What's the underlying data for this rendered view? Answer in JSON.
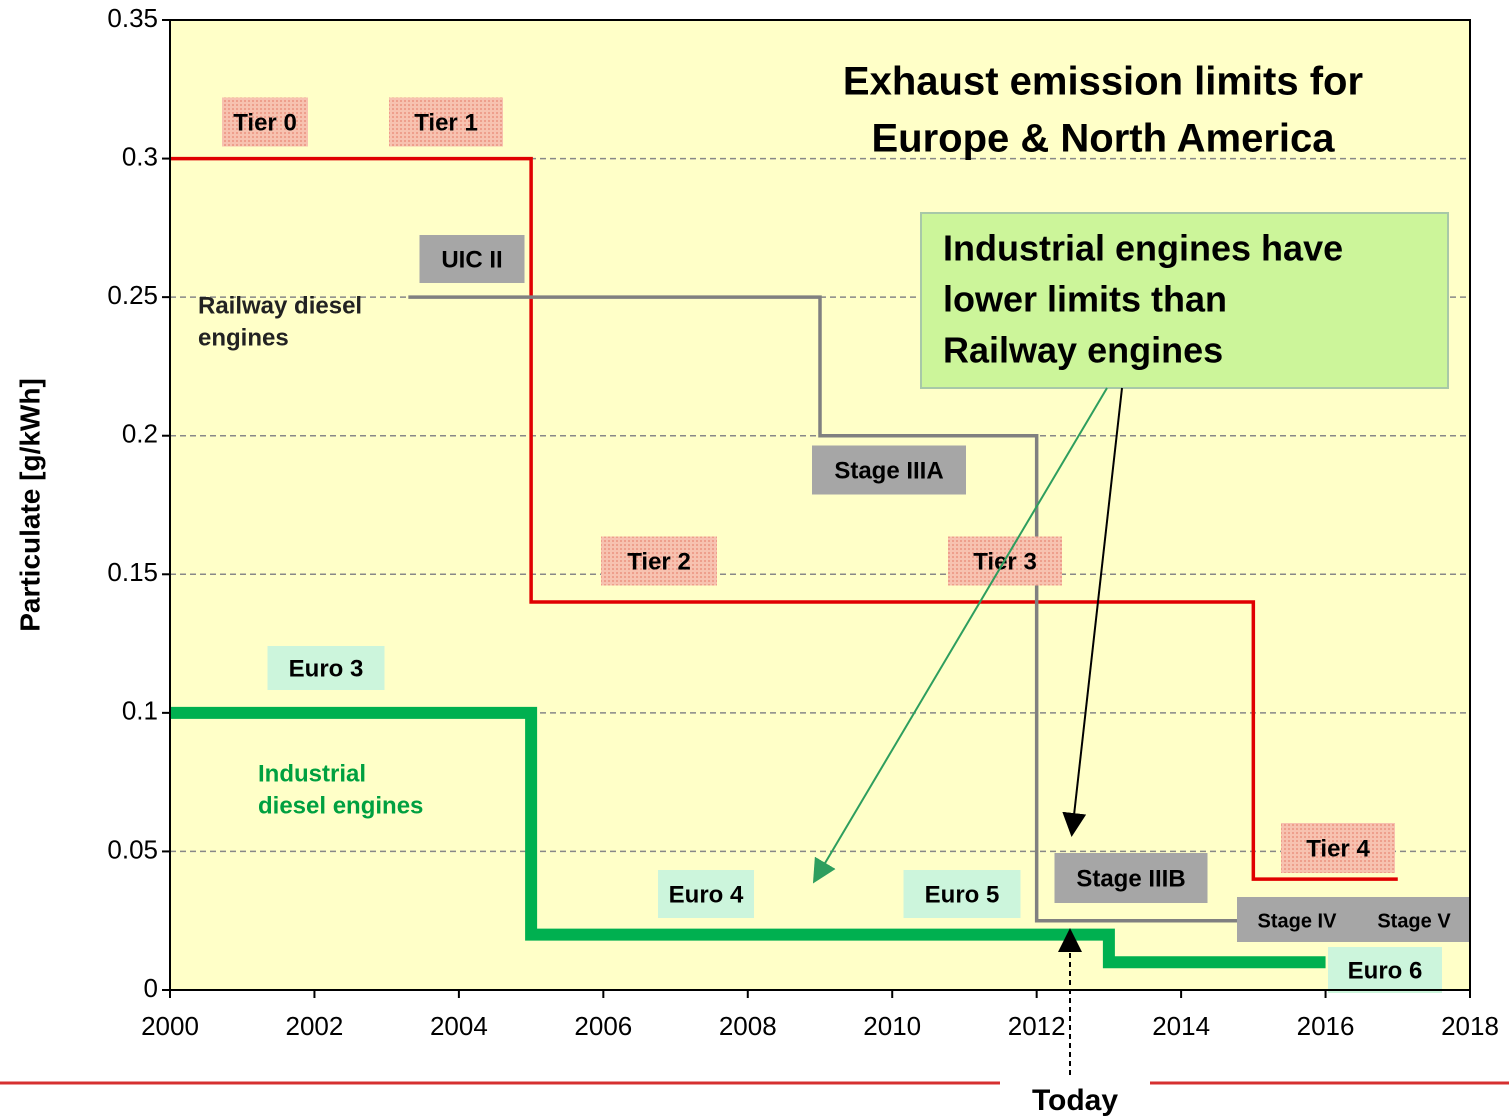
{
  "chart_data": {
    "type": "line",
    "title": [
      "Exhaust emission limits for",
      "Europe & North America"
    ],
    "ylabel": "Particulate [g/kWh]",
    "xlim": [
      2000,
      2018
    ],
    "xticks": [
      2000,
      2002,
      2004,
      2006,
      2008,
      2010,
      2012,
      2014,
      2016,
      2018
    ],
    "ylim": [
      0,
      0.35
    ],
    "yticks": [
      0,
      0.05,
      0.1,
      0.15,
      0.2,
      0.25,
      0.3,
      0.35
    ],
    "grid": true,
    "series": [
      {
        "color": "#e00000",
        "x": [
          2000,
          2005,
          2005,
          2015,
          2015,
          2017
        ],
        "values": [
          0.3,
          0.3,
          0.14,
          0.14,
          0.04,
          0.04
        ]
      },
      {
        "color": "#808080",
        "x": [
          2003.3,
          2009,
          2009,
          2012,
          2012,
          2018
        ],
        "values": [
          0.25,
          0.25,
          0.2,
          0.2,
          0.025,
          0.025
        ]
      },
      {
        "color": "#00b050",
        "x": [
          2000,
          2005,
          2005,
          2013,
          2013,
          2016
        ],
        "values": [
          0.1,
          0.1,
          0.02,
          0.02,
          0.01,
          0.01
        ]
      }
    ],
    "labels": [
      "Tier  0",
      "Tier  1",
      "UIC II",
      "Railway  diesel",
      "engines",
      "Stage IIIA",
      "Tier  2",
      "Tier  3",
      "Euro 3",
      "Industrial",
      "diesel engines",
      "Euro 4",
      "Euro 5",
      "Stage IIIB",
      "Tier  4",
      "Stage IV",
      "Stage V",
      "Euro 6"
    ],
    "callout": [
      "Industrial engines have",
      "lower limits than",
      "Railway engines"
    ],
    "today": "Today"
  }
}
